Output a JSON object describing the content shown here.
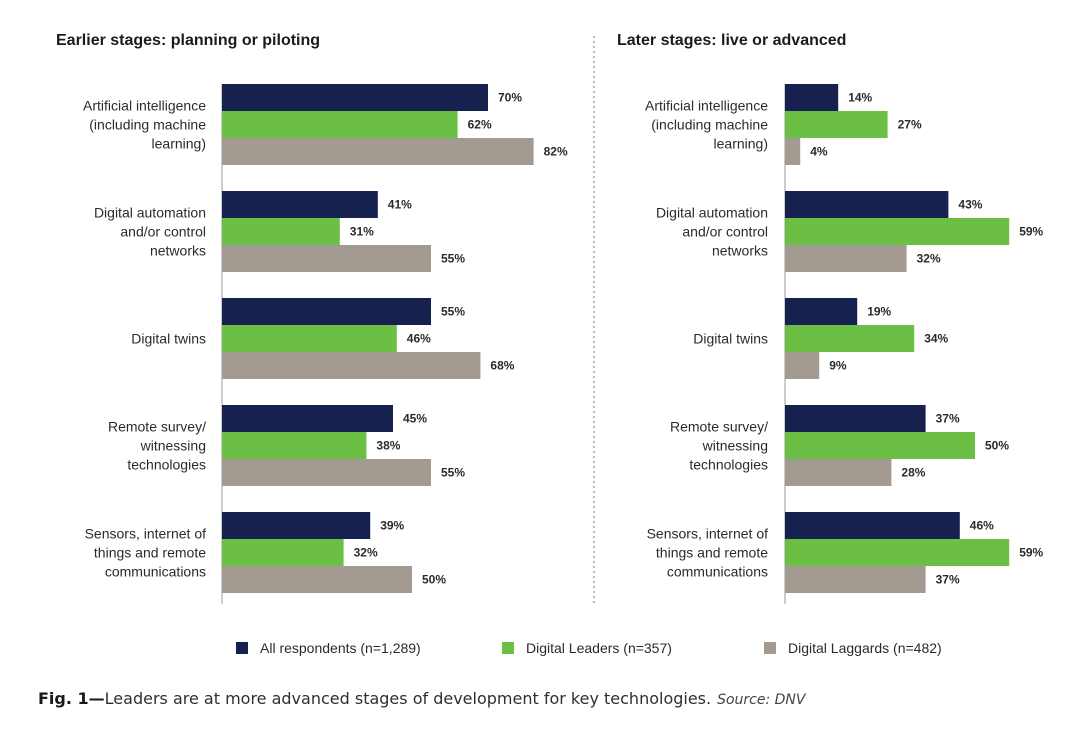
{
  "colors": {
    "all": "#16214f",
    "leaders": "#6abf44",
    "laggards": "#a39a91",
    "text": "#2b2b2b"
  },
  "legend": [
    {
      "key": "all",
      "label": "All respondents (n=1,289)"
    },
    {
      "key": "leaders",
      "label": "Digital Leaders (n=357)"
    },
    {
      "key": "laggards",
      "label": "Digital Laggards (n=482)"
    }
  ],
  "caption": {
    "fig": "Fig. 1—",
    "text": "Leaders are at more advanced stages of development for key technologies.",
    "source": "Source: DNV"
  },
  "chart_data": [
    {
      "type": "bar",
      "orientation": "horizontal",
      "title": "Earlier stages: planning or piloting",
      "categories": [
        [
          "Artificial intelligence",
          "(including machine",
          "learning)"
        ],
        [
          "Digital automation",
          "and/or control",
          "networks"
        ],
        [
          "Digital twins"
        ],
        [
          "Remote survey/",
          "witnessing",
          "technologies"
        ],
        [
          "Sensors, internet of",
          "things and remote",
          "communications"
        ]
      ],
      "series": [
        {
          "name": "All respondents (n=1,289)",
          "key": "all",
          "values": [
            70,
            41,
            55,
            45,
            39
          ]
        },
        {
          "name": "Digital Leaders (n=357)",
          "key": "leaders",
          "values": [
            62,
            31,
            46,
            38,
            32
          ]
        },
        {
          "name": "Digital Laggards (n=482)",
          "key": "laggards",
          "values": [
            82,
            55,
            68,
            55,
            50
          ]
        }
      ],
      "value_suffix": "%",
      "xlim": [
        0,
        100
      ]
    },
    {
      "type": "bar",
      "orientation": "horizontal",
      "title": "Later stages: live or advanced",
      "categories": [
        [
          "Artificial intelligence",
          "(including machine",
          "learning)"
        ],
        [
          "Digital automation",
          "and/or control",
          "networks"
        ],
        [
          "Digital twins"
        ],
        [
          "Remote survey/",
          "witnessing",
          "technologies"
        ],
        [
          "Sensors, internet of",
          "things and remote",
          "communications"
        ]
      ],
      "series": [
        {
          "name": "All respondents (n=1,289)",
          "key": "all",
          "values": [
            14,
            43,
            19,
            37,
            46
          ]
        },
        {
          "name": "Digital Leaders (n=357)",
          "key": "leaders",
          "values": [
            27,
            59,
            34,
            50,
            59
          ]
        },
        {
          "name": "Digital Laggards (n=482)",
          "key": "laggards",
          "values": [
            4,
            32,
            9,
            28,
            37
          ]
        }
      ],
      "value_suffix": "%",
      "xlim": [
        0,
        100
      ]
    }
  ]
}
